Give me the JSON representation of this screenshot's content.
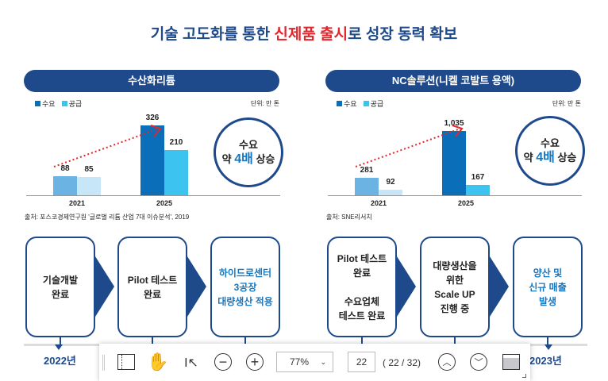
{
  "title": {
    "part1": "기술 고도화를 통한 ",
    "highlight": "신제품 출시",
    "part2": "로 성장 동력 확보"
  },
  "colors": {
    "navy": "#1e4a8c",
    "red": "#e3262b",
    "demand": "#0a6eb8",
    "demand_2021": "#6ab3e3",
    "supply": "#3dc3ef",
    "supply_2021": "#c7e6f7"
  },
  "panels": [
    {
      "name": "수산화리튬",
      "legend": [
        "수요",
        "공급"
      ],
      "unit": "단위: 만 톤",
      "circle": {
        "line1": "수요",
        "pre": "약 ",
        "bold": "4배",
        "post": " 상승"
      },
      "source": "출처: 포스코경제연구원 '글로벌 리튬 산업 7대 이슈분석', 2019",
      "steps": [
        {
          "text": "기술개발\n완료",
          "highlight": false
        },
        {
          "text": "Pilot 테스트\n완료",
          "highlight": false
        },
        {
          "text": "하이드로센터\n3공장\n대량생산 적용",
          "highlight": true
        }
      ],
      "year": "2022년"
    },
    {
      "name": "NC솔루션(니켈 코발트 용액)",
      "legend": [
        "수요",
        "공급"
      ],
      "unit": "단위: 만 톤",
      "circle": {
        "line1": "수요",
        "pre": "약 ",
        "bold": "4배",
        "post": " 상승"
      },
      "source": "출처: SNE리서치",
      "steps": [
        {
          "text": "Pilot 테스트\n완료\n\n수요업체\n테스트 완료",
          "highlight": false
        },
        {
          "text": "대량생산을\n위한\nScale UP\n진행 중",
          "highlight": false
        },
        {
          "text": "양산 및\n신규 매출\n발생",
          "highlight": true
        }
      ],
      "year": "2023년"
    }
  ],
  "chart_data": [
    {
      "type": "bar",
      "categories": [
        "2021",
        "2025"
      ],
      "series": [
        {
          "name": "수요",
          "values": [
            88,
            326
          ]
        },
        {
          "name": "공급",
          "values": [
            85,
            210
          ]
        }
      ],
      "value_labels": [
        [
          "88",
          "326"
        ],
        [
          "85",
          "210"
        ]
      ],
      "ylabel": "단위: 만 톤",
      "legend": "top-left",
      "grid": false
    },
    {
      "type": "bar",
      "categories": [
        "2021",
        "2025"
      ],
      "series": [
        {
          "name": "수요",
          "values": [
            281,
            1035
          ]
        },
        {
          "name": "공급",
          "values": [
            92,
            167
          ]
        }
      ],
      "value_labels": [
        [
          "281",
          "1,035"
        ],
        [
          "92",
          "167"
        ]
      ],
      "ylabel": "단위: 만 톤",
      "legend": "top-left",
      "grid": false
    }
  ],
  "toolbar": {
    "zoom": "77%",
    "page_input": "22",
    "page_info": "( 22 / 32)",
    "icons": [
      "sidebar-toggle-icon",
      "hand-tool-icon",
      "text-select-icon",
      "zoom-out-icon",
      "zoom-in-icon",
      "chevron-down-icon",
      "page-up-icon",
      "page-down-icon",
      "fit-page-icon"
    ]
  }
}
